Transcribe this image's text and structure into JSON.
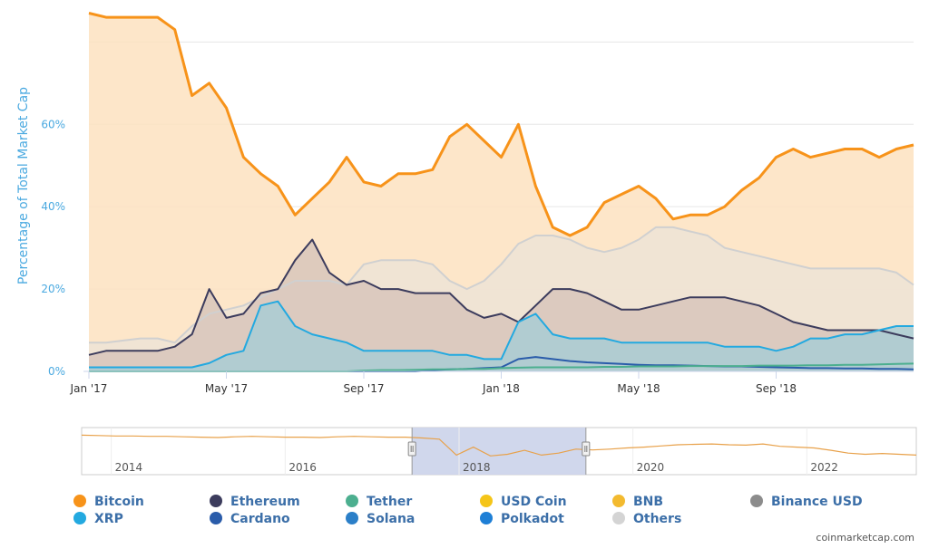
{
  "chart_data": {
    "type": "area",
    "ylabel": "Percentage of Total Market Cap",
    "ylim": [
      0,
      88
    ],
    "yticks": [
      "0%",
      "20%",
      "40%",
      "60%"
    ],
    "ytick_values": [
      0,
      20,
      40,
      60
    ],
    "xticks": [
      "Jan '17",
      "May '17",
      "Sep '17",
      "Jan '18",
      "May '18",
      "Sep '18"
    ],
    "xtick_values": [
      0,
      4,
      8,
      12,
      16,
      20
    ],
    "x": [
      0,
      0.5,
      1,
      1.5,
      2,
      2.5,
      3,
      3.5,
      4,
      4.5,
      5,
      5.5,
      6,
      6.5,
      7,
      7.5,
      8,
      8.5,
      9,
      9.5,
      10,
      10.5,
      11,
      11.5,
      12,
      12.5,
      13,
      13.5,
      14,
      14.5,
      15,
      15.5,
      16,
      16.5,
      17,
      17.5,
      18,
      18.5,
      19,
      19.5,
      20,
      20.5,
      21,
      21.5,
      22,
      22.5,
      23,
      23.5,
      24
    ],
    "series": [
      {
        "name": "Bitcoin",
        "color": "#f7931a",
        "fill": "#fde2c0",
        "values": [
          87,
          86,
          86,
          86,
          86,
          83,
          67,
          70,
          64,
          52,
          48,
          45,
          38,
          42,
          46,
          52,
          46,
          45,
          48,
          48,
          49,
          57,
          60,
          56,
          52,
          60,
          45,
          35,
          33,
          35,
          41,
          43,
          45,
          42,
          37,
          38,
          38,
          40,
          44,
          47,
          52,
          54,
          52,
          53,
          54,
          54,
          52,
          54,
          55
        ]
      },
      {
        "name": "Others",
        "color": "#d0d0d0",
        "fill": "#ede3d6",
        "values": [
          7,
          7,
          7.5,
          8,
          8,
          7,
          11,
          14,
          15,
          16,
          18,
          20,
          22,
          22,
          22,
          21,
          26,
          27,
          27,
          27,
          26,
          22,
          20,
          22,
          26,
          31,
          33,
          33,
          32,
          30,
          29,
          30,
          32,
          35,
          35,
          34,
          33,
          30,
          29,
          28,
          27,
          26,
          25,
          25,
          25,
          25,
          25,
          24,
          21
        ]
      },
      {
        "name": "Ethereum",
        "color": "#3c3c5d",
        "fill": "#d8c6bb",
        "values": [
          4,
          5,
          5,
          5,
          5,
          6,
          9,
          20,
          13,
          14,
          19,
          20,
          27,
          32,
          24,
          21,
          22,
          20,
          20,
          19,
          19,
          19,
          15,
          13,
          14,
          12,
          16,
          20,
          20,
          19,
          17,
          15,
          15,
          16,
          17,
          18,
          18,
          18,
          17,
          16,
          14,
          12,
          11,
          10,
          10,
          10,
          10,
          9,
          8
        ]
      },
      {
        "name": "XRP",
        "color": "#23a9e0",
        "fill": "#a9cdd3",
        "values": [
          1,
          1,
          1,
          1,
          1,
          1,
          1,
          2,
          4,
          5,
          16,
          17,
          11,
          9,
          8,
          7,
          5,
          5,
          5,
          5,
          5,
          4,
          4,
          3,
          3,
          12,
          14,
          9,
          8,
          8,
          8,
          7,
          7,
          7,
          7,
          7,
          7,
          6,
          6,
          6,
          5,
          6,
          8,
          8,
          9,
          9,
          10,
          11,
          11
        ]
      },
      {
        "name": "Cardano",
        "color": "#2a5caa",
        "fill": "none",
        "values": [
          0,
          0,
          0,
          0,
          0,
          0,
          0,
          0,
          0,
          0,
          0,
          0,
          0,
          0,
          0,
          0,
          0,
          0,
          0,
          0,
          0.3,
          0.5,
          0.6,
          0.8,
          1,
          3,
          3.5,
          3,
          2.5,
          2.2,
          2,
          1.8,
          1.6,
          1.5,
          1.5,
          1.4,
          1.3,
          1.2,
          1.2,
          1.1,
          1,
          0.9,
          0.8,
          0.8,
          0.7,
          0.7,
          0.6,
          0.6,
          0.5
        ]
      },
      {
        "name": "Tether",
        "color": "#4caf8f",
        "fill": "none",
        "values": [
          0,
          0,
          0,
          0,
          0,
          0,
          0,
          0,
          0,
          0,
          0,
          0,
          0,
          0,
          0,
          0,
          0.2,
          0.3,
          0.3,
          0.4,
          0.5,
          0.5,
          0.6,
          0.6,
          0.8,
          0.9,
          1,
          1,
          1,
          1,
          1.1,
          1.1,
          1.2,
          1.2,
          1.2,
          1.3,
          1.3,
          1.3,
          1.3,
          1.4,
          1.4,
          1.4,
          1.5,
          1.5,
          1.6,
          1.6,
          1.7,
          1.8,
          1.9
        ]
      }
    ],
    "navigator": {
      "ticks": [
        "2014",
        "2016",
        "2018",
        "2020",
        "2022"
      ],
      "tick_years": [
        2014,
        2016,
        2018,
        2020,
        2022
      ],
      "start_year": 2013.2,
      "end_year": 2022.8,
      "selected_range": [
        2017.0,
        2019.0
      ],
      "values": [
        90,
        89,
        88,
        88,
        87,
        87,
        86,
        85,
        84,
        86,
        87,
        86,
        85,
        85,
        84,
        86,
        87,
        86,
        85,
        85,
        83,
        80,
        40,
        60,
        38,
        42,
        52,
        40,
        45,
        55,
        53,
        55,
        58,
        60,
        63,
        66,
        67,
        68,
        66,
        65,
        68,
        62,
        60,
        58,
        52,
        45,
        42,
        44,
        42,
        40
      ]
    },
    "legend": [
      {
        "name": "Bitcoin",
        "color": "#f7931a"
      },
      {
        "name": "Ethereum",
        "color": "#3c3c5d"
      },
      {
        "name": "Tether",
        "color": "#4caf8f"
      },
      {
        "name": "USD Coin",
        "color": "#f5c518"
      },
      {
        "name": "BNB",
        "color": "#f3ba2f"
      },
      {
        "name": "Binance USD",
        "color": "#8c8c8c"
      },
      {
        "name": "XRP",
        "color": "#23a9e0"
      },
      {
        "name": "Cardano",
        "color": "#2a5caa"
      },
      {
        "name": "Solana",
        "color": "#2b7fc8"
      },
      {
        "name": "Polkadot",
        "color": "#1e7fd6"
      },
      {
        "name": "Others",
        "color": "#d4d4d4"
      }
    ],
    "credit": "coinmarketcap.com"
  }
}
